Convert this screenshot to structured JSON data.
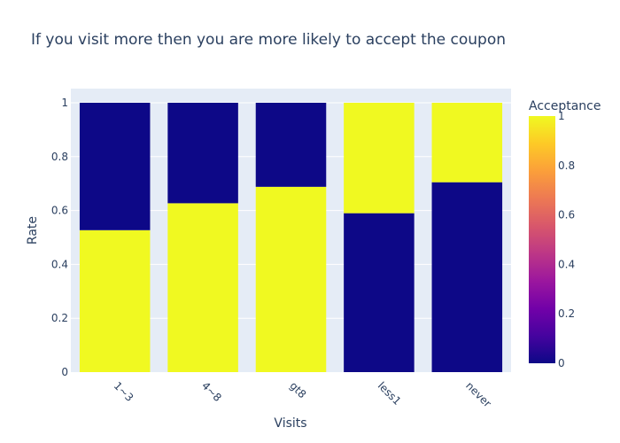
{
  "chart_data": {
    "type": "bar",
    "stacked": true,
    "title": "If you visit more then you are more likely to accept the coupon",
    "xlabel": "Visits",
    "ylabel": "Rate",
    "categories": [
      "1~3",
      "4~8",
      "gt8",
      "less1",
      "never"
    ],
    "ylim": [
      0,
      1
    ],
    "yticks": [
      "0",
      "0.2",
      "0.4",
      "0.6",
      "0.8",
      "1"
    ],
    "segments": [
      {
        "category": "1~3",
        "acceptance": 1,
        "value": 0.527
      },
      {
        "category": "1~3",
        "acceptance": 0,
        "value": 0.473
      },
      {
        "category": "4~8",
        "acceptance": 1,
        "value": 0.627
      },
      {
        "category": "4~8",
        "acceptance": 0,
        "value": 0.373
      },
      {
        "category": "gt8",
        "acceptance": 1,
        "value": 0.688
      },
      {
        "category": "gt8",
        "acceptance": 0,
        "value": 0.312
      },
      {
        "category": "less1",
        "acceptance": 0,
        "value": 0.59
      },
      {
        "category": "less1",
        "acceptance": 1,
        "value": 0.41
      },
      {
        "category": "never",
        "acceptance": 0,
        "value": 0.705
      },
      {
        "category": "never",
        "acceptance": 1,
        "value": 0.295
      }
    ],
    "colorbar": {
      "title": "Acceptance",
      "range": [
        0,
        1
      ],
      "ticks": [
        "0",
        "0.2",
        "0.4",
        "0.6",
        "0.8",
        "1"
      ],
      "colors": [
        "#0d0887",
        "#46039f",
        "#7201a8",
        "#9c179e",
        "#bd3786",
        "#d8576b",
        "#ed7953",
        "#fb9f3a",
        "#fdca26",
        "#f0f921"
      ]
    },
    "grid": true,
    "plot_background": "#e5ecf6"
  }
}
